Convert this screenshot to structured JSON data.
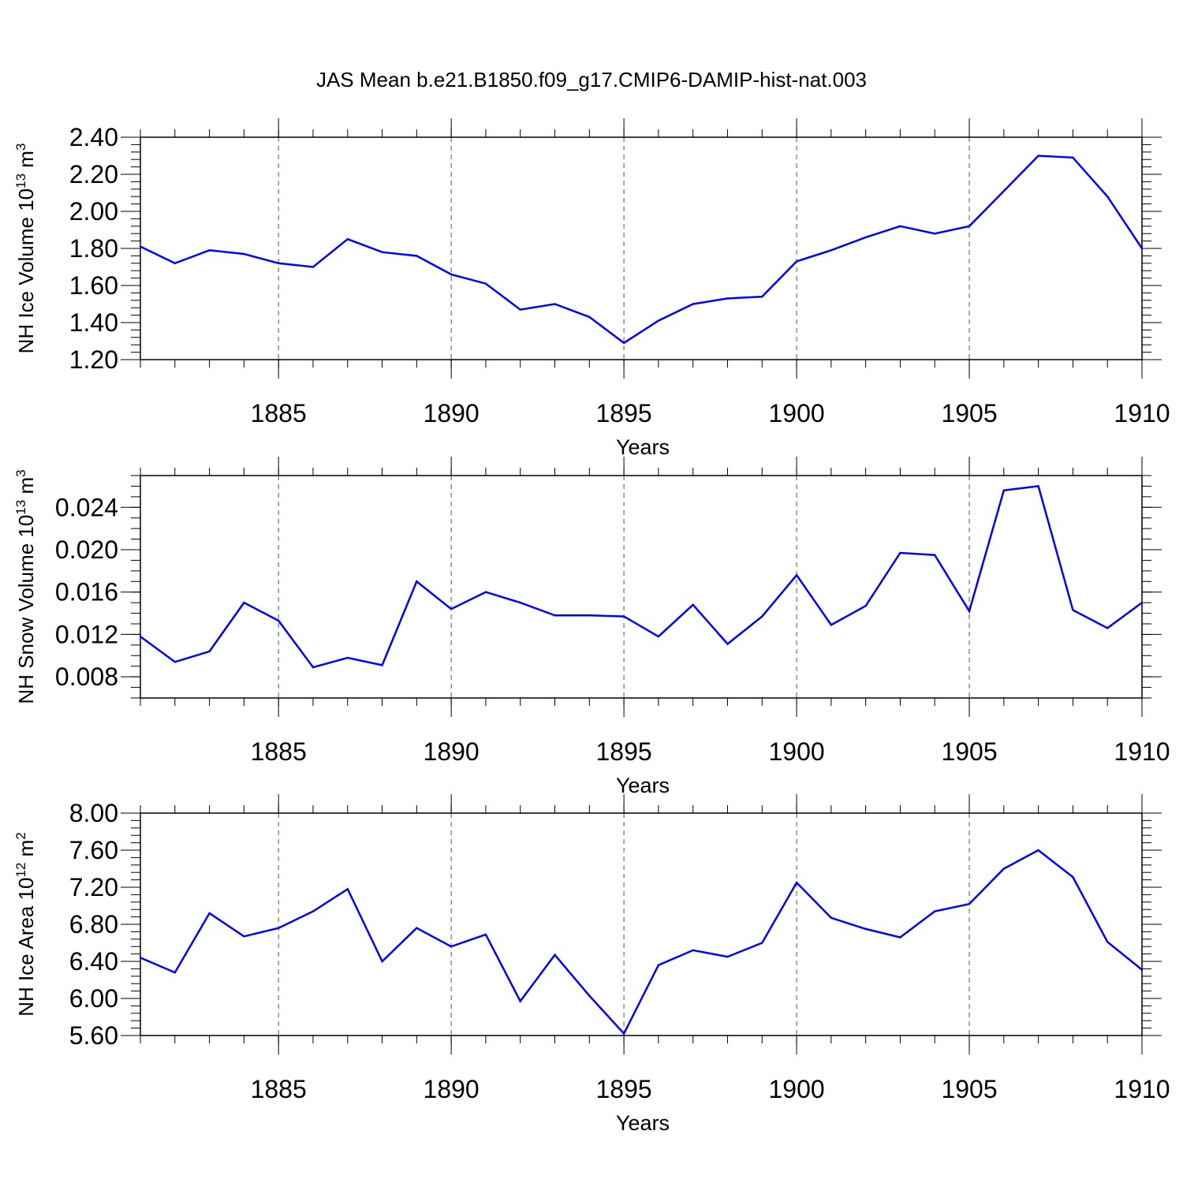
{
  "title": "JAS Mean b.e21.B1850.f09_g17.CMIP6-DAMIP-hist-nat.003",
  "line_color": "#0000ff",
  "chart_data": [
    {
      "type": "line",
      "ylabel": "NH Ice Volume 10",
      "ylabel_exp": "13",
      "ylabel_unit": " m",
      "ylabel_unit_exp": "3",
      "xlabel": "Years",
      "xlim": [
        1881,
        1910
      ],
      "ylim": [
        1.2,
        2.4
      ],
      "yticks": [
        {
          "v": 1.2,
          "label": "1.20"
        },
        {
          "v": 1.4,
          "label": "1.40"
        },
        {
          "v": 1.6,
          "label": "1.60"
        },
        {
          "v": 1.8,
          "label": "1.80"
        },
        {
          "v": 2.0,
          "label": "2.00"
        },
        {
          "v": 2.2,
          "label": "2.20"
        },
        {
          "v": 2.4,
          "label": "2.40"
        }
      ],
      "yminor_step": 0.04,
      "xticks": [
        {
          "v": 1885,
          "label": "1885"
        },
        {
          "v": 1890,
          "label": "1890"
        },
        {
          "v": 1895,
          "label": "1895"
        },
        {
          "v": 1900,
          "label": "1900"
        },
        {
          "v": 1905,
          "label": "1905"
        },
        {
          "v": 1910,
          "label": "1910"
        }
      ],
      "grid_x": true,
      "series": [
        {
          "x": [
            1881,
            1882,
            1883,
            1884,
            1885,
            1886,
            1887,
            1888,
            1889,
            1890,
            1891,
            1892,
            1893,
            1894,
            1895,
            1896,
            1897,
            1898,
            1899,
            1900,
            1901,
            1902,
            1903,
            1904,
            1905,
            1906,
            1907,
            1908,
            1909,
            1910
          ],
          "values": [
            1.81,
            1.72,
            1.79,
            1.77,
            1.72,
            1.7,
            1.85,
            1.78,
            1.76,
            1.66,
            1.61,
            1.47,
            1.5,
            1.43,
            1.29,
            1.41,
            1.5,
            1.53,
            1.54,
            1.73,
            1.79,
            1.86,
            1.92,
            1.88,
            1.92,
            2.11,
            2.3,
            2.29,
            2.08,
            1.8
          ]
        }
      ]
    },
    {
      "type": "line",
      "ylabel": "NH Snow Volume 10",
      "ylabel_exp": "13",
      "ylabel_unit": " m",
      "ylabel_unit_exp": "3",
      "xlabel": "Years",
      "xlim": [
        1881,
        1910
      ],
      "ylim": [
        0.006,
        0.027
      ],
      "yticks": [
        {
          "v": 0.008,
          "label": "0.008"
        },
        {
          "v": 0.012,
          "label": "0.012"
        },
        {
          "v": 0.016,
          "label": "0.016"
        },
        {
          "v": 0.02,
          "label": "0.020"
        },
        {
          "v": 0.024,
          "label": "0.024"
        }
      ],
      "yminor_step": 0.001,
      "xticks": [
        {
          "v": 1885,
          "label": "1885"
        },
        {
          "v": 1890,
          "label": "1890"
        },
        {
          "v": 1895,
          "label": "1895"
        },
        {
          "v": 1900,
          "label": "1900"
        },
        {
          "v": 1905,
          "label": "1905"
        },
        {
          "v": 1910,
          "label": "1910"
        }
      ],
      "grid_x": true,
      "series": [
        {
          "x": [
            1881,
            1882,
            1883,
            1884,
            1885,
            1886,
            1887,
            1888,
            1889,
            1890,
            1891,
            1892,
            1893,
            1894,
            1895,
            1896,
            1897,
            1898,
            1899,
            1900,
            1901,
            1902,
            1903,
            1904,
            1905,
            1906,
            1907,
            1908,
            1909,
            1910
          ],
          "values": [
            0.0118,
            0.0094,
            0.0104,
            0.015,
            0.0133,
            0.0089,
            0.0098,
            0.0091,
            0.017,
            0.0144,
            0.016,
            0.015,
            0.0138,
            0.0138,
            0.0137,
            0.0118,
            0.0148,
            0.0111,
            0.0137,
            0.0176,
            0.0129,
            0.0147,
            0.0197,
            0.0195,
            0.0142,
            0.0256,
            0.026,
            0.0143,
            0.0126,
            0.015
          ]
        }
      ]
    },
    {
      "type": "line",
      "ylabel": "NH Ice Area 10",
      "ylabel_exp": "12",
      "ylabel_unit": " m",
      "ylabel_unit_exp": "2",
      "xlabel": "Years",
      "xlim": [
        1881,
        1910
      ],
      "ylim": [
        5.6,
        8.0
      ],
      "yticks": [
        {
          "v": 5.6,
          "label": "5.60"
        },
        {
          "v": 6.0,
          "label": "6.00"
        },
        {
          "v": 6.4,
          "label": "6.40"
        },
        {
          "v": 6.8,
          "label": "6.80"
        },
        {
          "v": 7.2,
          "label": "7.20"
        },
        {
          "v": 7.6,
          "label": "7.60"
        },
        {
          "v": 8.0,
          "label": "8.00"
        }
      ],
      "yminor_step": 0.08,
      "xticks": [
        {
          "v": 1885,
          "label": "1885"
        },
        {
          "v": 1890,
          "label": "1890"
        },
        {
          "v": 1895,
          "label": "1895"
        },
        {
          "v": 1900,
          "label": "1900"
        },
        {
          "v": 1905,
          "label": "1905"
        },
        {
          "v": 1910,
          "label": "1910"
        }
      ],
      "grid_x": true,
      "series": [
        {
          "x": [
            1881,
            1882,
            1883,
            1884,
            1885,
            1886,
            1887,
            1888,
            1889,
            1890,
            1891,
            1892,
            1893,
            1894,
            1895,
            1896,
            1897,
            1898,
            1899,
            1900,
            1901,
            1902,
            1903,
            1904,
            1905,
            1906,
            1907,
            1908,
            1909,
            1910
          ],
          "values": [
            6.44,
            6.28,
            6.92,
            6.67,
            6.76,
            6.94,
            7.18,
            6.4,
            6.76,
            6.56,
            6.69,
            5.97,
            6.47,
            6.03,
            5.62,
            6.36,
            6.52,
            6.45,
            6.6,
            7.25,
            6.87,
            6.75,
            6.66,
            6.94,
            7.02,
            7.4,
            7.6,
            7.31,
            6.61,
            6.31
          ]
        }
      ]
    }
  ]
}
